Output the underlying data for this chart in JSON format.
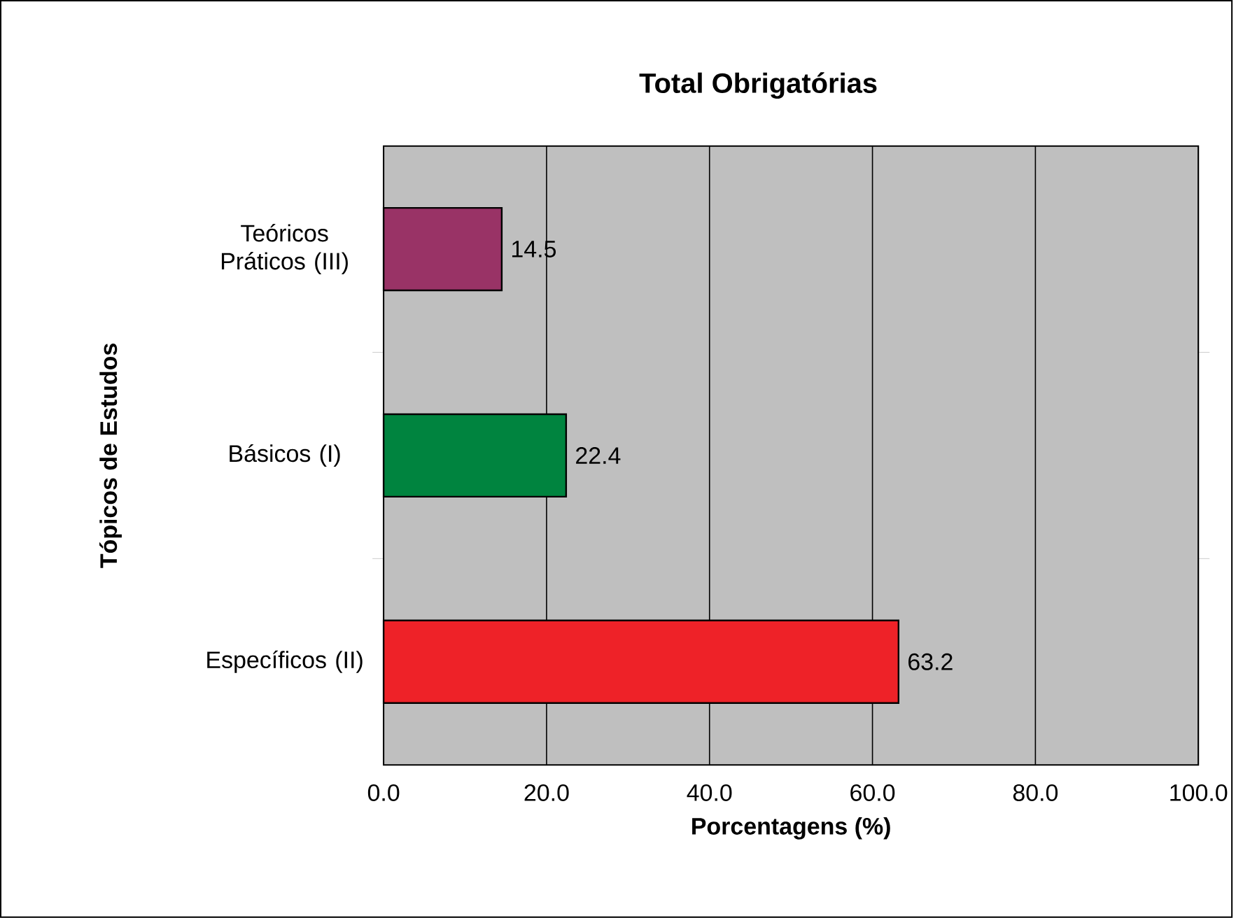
{
  "chart_data": {
    "type": "bar",
    "orientation": "horizontal",
    "title": "Total Obrigatórias",
    "xlabel": "Porcentagens (%)",
    "ylabel": "Tópicos de Estudos",
    "categories": [
      "Teóricos Práticos (III)",
      "Básicos (I)",
      "Específicos (II)"
    ],
    "values": [
      14.5,
      22.4,
      63.2
    ],
    "colors": [
      "#993366",
      "#00843f",
      "#ee2228"
    ],
    "xlim": [
      0,
      100
    ],
    "xticks": [
      {
        "value": 0,
        "label": "0.0"
      },
      {
        "value": 20,
        "label": "20.0"
      },
      {
        "value": 40,
        "label": "40.0"
      },
      {
        "value": 60,
        "label": "60.0"
      },
      {
        "value": 80,
        "label": "80.0"
      },
      {
        "value": 100,
        "label": "100.0"
      }
    ],
    "grid": "x",
    "data_labels": true
  }
}
